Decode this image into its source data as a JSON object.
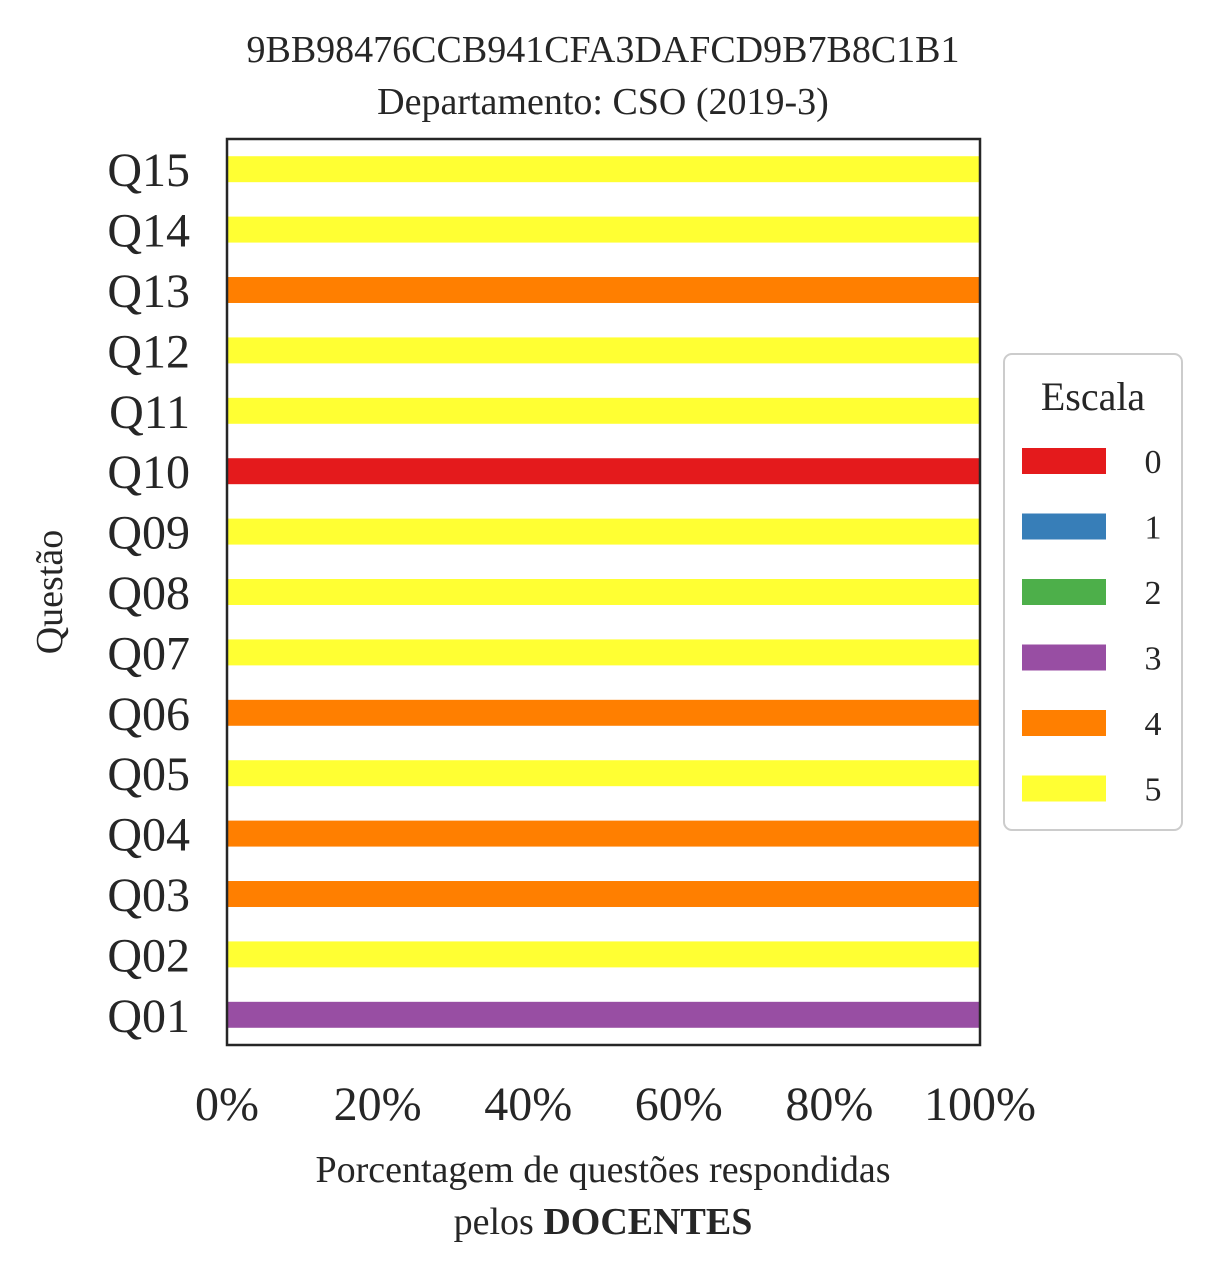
{
  "chart_data": {
    "type": "bar",
    "orientation": "horizontal",
    "stacked": true,
    "title": "9BB98476CCB941CFA3DAFCD9B7B8C1B1",
    "subtitle": "Departamento: CSO (2019-3)",
    "xlabel_line1": "Porcentagem de questões respondidas",
    "xlabel_line2_prefix": "pelos ",
    "xlabel_line2_bold": "DOCENTES",
    "ylabel": "Questão",
    "xlim": [
      0,
      100
    ],
    "xticks": [
      "0%",
      "20%",
      "40%",
      "60%",
      "80%",
      "100%"
    ],
    "categories": [
      "Q01",
      "Q02",
      "Q03",
      "Q04",
      "Q05",
      "Q06",
      "Q07",
      "Q08",
      "Q09",
      "Q10",
      "Q11",
      "Q12",
      "Q13",
      "Q14",
      "Q15"
    ],
    "series": [
      {
        "name": "0",
        "color": "#e41a1c",
        "values": [
          0,
          0,
          0,
          0,
          0,
          0,
          0,
          0,
          0,
          100,
          0,
          0,
          0,
          0,
          0
        ]
      },
      {
        "name": "1",
        "color": "#377eb8",
        "values": [
          0,
          0,
          0,
          0,
          0,
          0,
          0,
          0,
          0,
          0,
          0,
          0,
          0,
          0,
          0
        ]
      },
      {
        "name": "2",
        "color": "#4daf4a",
        "values": [
          0,
          0,
          0,
          0,
          0,
          0,
          0,
          0,
          0,
          0,
          0,
          0,
          0,
          0,
          0
        ]
      },
      {
        "name": "3",
        "color": "#984ea3",
        "values": [
          100,
          0,
          0,
          0,
          0,
          0,
          0,
          0,
          0,
          0,
          0,
          0,
          0,
          0,
          0
        ]
      },
      {
        "name": "4",
        "color": "#ff7f00",
        "values": [
          0,
          0,
          100,
          100,
          0,
          100,
          0,
          0,
          0,
          0,
          0,
          0,
          100,
          0,
          0
        ]
      },
      {
        "name": "5",
        "color": "#ffff33",
        "values": [
          0,
          100,
          0,
          0,
          100,
          0,
          100,
          100,
          100,
          0,
          100,
          100,
          0,
          100,
          100
        ]
      }
    ],
    "legend": {
      "title": "Escala",
      "position": "right"
    },
    "grid": false
  }
}
